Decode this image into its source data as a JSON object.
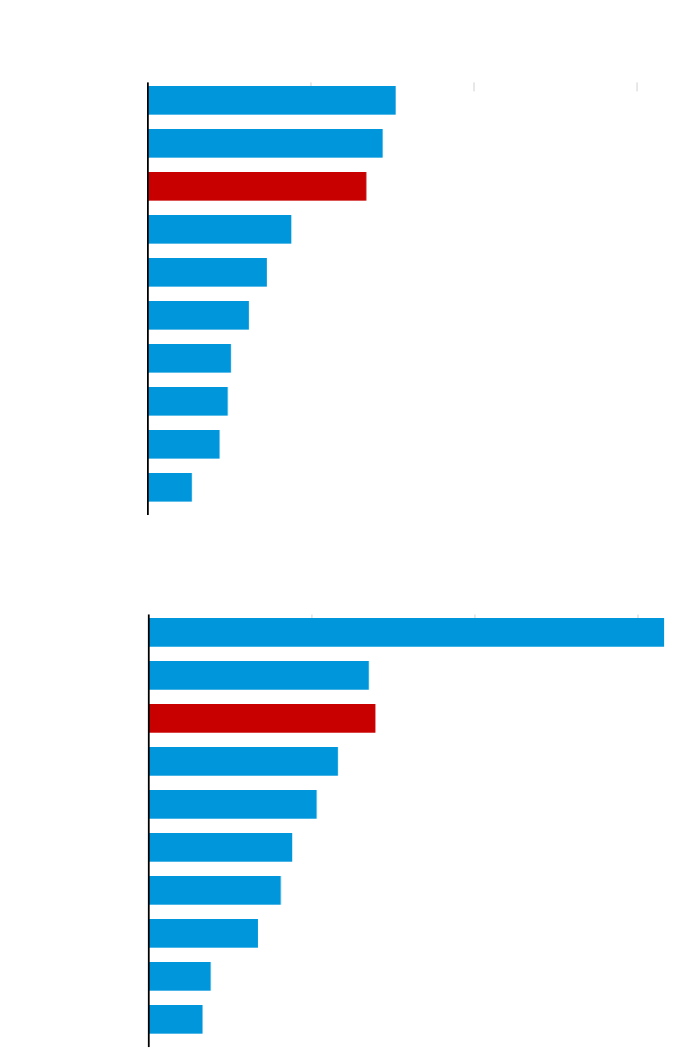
{
  "chart_data": [
    {
      "type": "bar",
      "orientation": "horizontal",
      "categories": [
        null,
        null,
        null,
        null,
        null,
        null,
        null,
        null,
        null,
        null
      ],
      "values": [
        1.52,
        1.44,
        1.34,
        0.88,
        0.73,
        0.62,
        0.51,
        0.49,
        0.44,
        0.27
      ],
      "colors": [
        "#0096db",
        "#0096db",
        "#c80000",
        "#0096db",
        "#0096db",
        "#0096db",
        "#0096db",
        "#0096db",
        "#0096db",
        "#0096db"
      ],
      "xlim": [
        0,
        3.2
      ],
      "xticks": [
        0,
        1,
        2,
        3
      ]
    },
    {
      "type": "bar",
      "orientation": "horizontal",
      "categories": [
        null,
        null,
        null,
        null,
        null,
        null,
        null,
        null,
        null,
        null
      ],
      "values": [
        3.16,
        1.35,
        1.39,
        1.16,
        1.03,
        0.88,
        0.81,
        0.67,
        0.38,
        0.33
      ],
      "colors": [
        "#0096db",
        "#0096db",
        "#c80000",
        "#0096db",
        "#0096db",
        "#0096db",
        "#0096db",
        "#0096db",
        "#0096db",
        "#0096db"
      ],
      "xlim": [
        0,
        3.2
      ],
      "xticks": [
        0,
        1,
        2,
        3
      ]
    }
  ]
}
